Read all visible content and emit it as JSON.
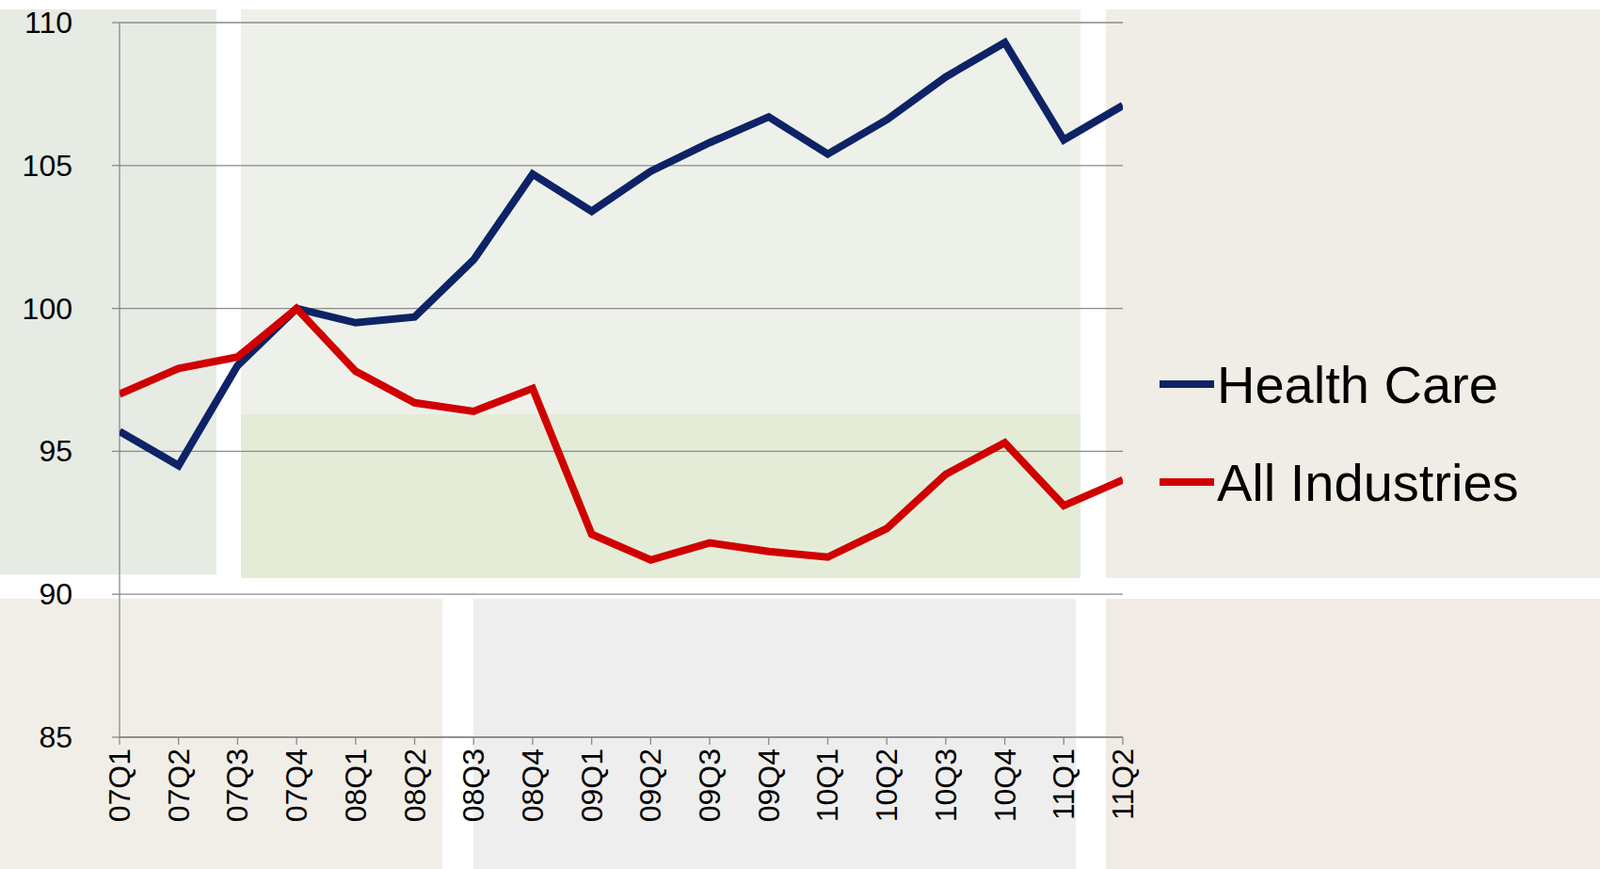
{
  "chart_data": {
    "type": "line",
    "categories": [
      "07Q1",
      "07Q2",
      "07Q3",
      "07Q4",
      "08Q1",
      "08Q2",
      "08Q3",
      "08Q4",
      "09Q1",
      "09Q2",
      "09Q3",
      "09Q4",
      "10Q1",
      "10Q2",
      "10Q3",
      "10Q4",
      "11Q1",
      "11Q2"
    ],
    "series": [
      {
        "name": "Health Care",
        "color": "#0d2366",
        "values": [
          95.7,
          94.5,
          98.0,
          100.0,
          99.5,
          99.7,
          101.7,
          104.7,
          103.4,
          104.8,
          105.8,
          106.7,
          105.4,
          106.6,
          108.1,
          109.3,
          105.9,
          107.1
        ]
      },
      {
        "name": "All Industries",
        "color": "#d00000",
        "values": [
          97.0,
          97.9,
          98.3,
          100.0,
          97.8,
          96.7,
          96.4,
          97.2,
          92.1,
          91.2,
          91.8,
          91.5,
          91.3,
          92.3,
          94.2,
          95.3,
          93.1,
          94.0
        ]
      }
    ],
    "ylim": [
      85,
      110
    ],
    "yticks": [
      85,
      90,
      95,
      100,
      105,
      110
    ],
    "grid": true,
    "legend": "right"
  }
}
